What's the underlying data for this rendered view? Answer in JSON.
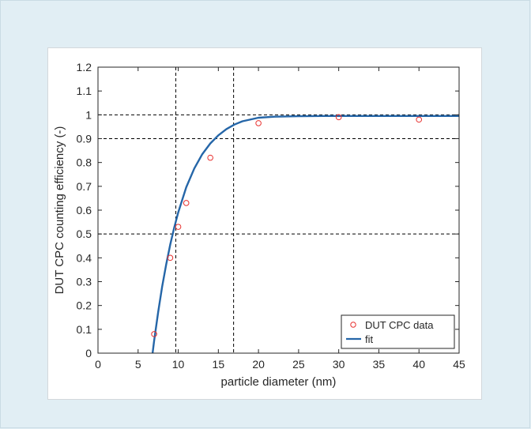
{
  "chart_data": {
    "type": "scatter",
    "xlabel": "particle diameter (nm)",
    "ylabel": "DUT CPC counting efficiency (-)",
    "xlim": [
      0,
      45
    ],
    "ylim": [
      0,
      1.2
    ],
    "xticks": [
      "0",
      "5",
      "10",
      "15",
      "20",
      "25",
      "30",
      "35",
      "40",
      "45"
    ],
    "yticks": [
      "0",
      "0.1",
      "0.2",
      "0.3",
      "0.4",
      "0.5",
      "0.6",
      "0.7",
      "0.8",
      "0.9",
      "1",
      "1.1",
      "1.2"
    ],
    "grid": false,
    "legend_position": "bottom-right",
    "series": [
      {
        "name": "DUT CPC data",
        "kind": "markers",
        "color": "#e8312f",
        "x": [
          7,
          9,
          10,
          11,
          14,
          20,
          30,
          40
        ],
        "y": [
          0.08,
          0.4,
          0.53,
          0.63,
          0.82,
          0.965,
          0.99,
          0.98
        ]
      },
      {
        "name": "fit",
        "kind": "line",
        "color": "#2566a8",
        "x": [
          6.8,
          7,
          7.5,
          8,
          8.5,
          9,
          9.5,
          10,
          11,
          12,
          13,
          14,
          15,
          16,
          17,
          18,
          20,
          22,
          25,
          28,
          30,
          35,
          40,
          45
        ],
        "y": [
          0.0,
          0.053,
          0.173,
          0.279,
          0.372,
          0.455,
          0.527,
          0.591,
          0.696,
          0.775,
          0.835,
          0.88,
          0.914,
          0.94,
          0.959,
          0.973,
          0.988,
          0.992,
          0.994,
          0.995,
          0.995,
          0.995,
          0.995,
          0.995
        ]
      }
    ],
    "reference_lines": {
      "vertical_x": [
        9.7,
        16.9
      ],
      "horizontal_y": [
        0.5,
        0.9,
        1.0
      ]
    }
  }
}
